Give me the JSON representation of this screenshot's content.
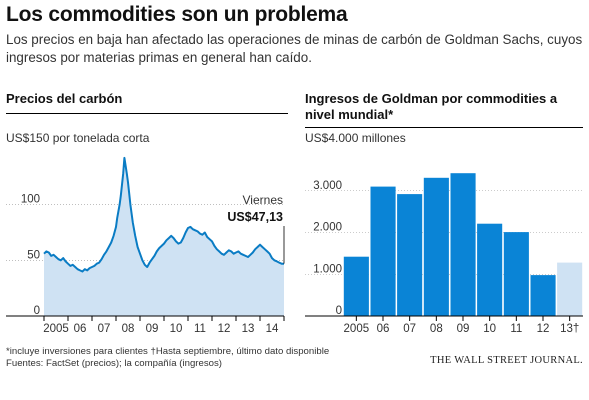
{
  "header": {
    "title": "Los commodities son un problema",
    "subtitle": "Los precios en baja han afectado las operaciones de minas de carbón de Goldman Sachs, cuyos ingresos por materias primas en general han caído."
  },
  "footer": {
    "note": "*incluye inversiones para clientes  †Hasta septiembre, último dato disponible",
    "sources": "Fuentes: FactSet (precios); la compañía (ingresos)",
    "brand": "THE WALL STREET JOURNAL."
  },
  "colors": {
    "fill": "#cfe2f3",
    "line": "#0a7cc4",
    "bar": "#0a84d6",
    "bar_light": "#cfe2f3"
  },
  "chart_data": [
    {
      "type": "area",
      "title": "Precios del carbón",
      "unit_label": "US$150 por tonelada corta",
      "ylim": [
        0,
        150
      ],
      "yticks": [
        0,
        50,
        100
      ],
      "xlim": [
        2005.0,
        2015.0
      ],
      "xtick_labels": [
        "2005",
        "06",
        "07",
        "08",
        "09",
        "10",
        "11",
        "12",
        "13",
        "14"
      ],
      "annotation": {
        "label": "Viernes",
        "value": "US$47,13"
      },
      "series": [
        {
          "x": [
            2005.0,
            2005.1,
            2005.2,
            2005.3,
            2005.4,
            2005.5,
            2005.6,
            2005.7,
            2005.8,
            2005.9,
            2006.0,
            2006.1,
            2006.2,
            2006.3,
            2006.4,
            2006.5,
            2006.6,
            2006.7,
            2006.8,
            2006.9,
            2007.0,
            2007.1,
            2007.2,
            2007.3,
            2007.4,
            2007.5,
            2007.6,
            2007.7,
            2007.8,
            2007.9,
            2008.0,
            2008.05,
            2008.1,
            2008.15,
            2008.2,
            2008.25,
            2008.3,
            2008.35,
            2008.4,
            2008.45,
            2008.5,
            2008.55,
            2008.6,
            2008.65,
            2008.7,
            2008.75,
            2008.8,
            2008.9,
            2009.0,
            2009.1,
            2009.2,
            2009.3,
            2009.4,
            2009.5,
            2009.6,
            2009.7,
            2009.8,
            2009.9,
            2010.0,
            2010.1,
            2010.2,
            2010.3,
            2010.4,
            2010.5,
            2010.6,
            2010.7,
            2010.8,
            2010.9,
            2011.0,
            2011.1,
            2011.2,
            2011.3,
            2011.4,
            2011.5,
            2011.6,
            2011.7,
            2011.8,
            2011.9,
            2012.0,
            2012.1,
            2012.2,
            2012.3,
            2012.4,
            2012.5,
            2012.6,
            2012.7,
            2012.8,
            2012.9,
            2013.0,
            2013.1,
            2013.2,
            2013.3,
            2013.4,
            2013.5,
            2013.6,
            2013.7,
            2013.8,
            2013.9,
            2014.0,
            2014.1,
            2014.2,
            2014.3,
            2014.4,
            2014.5,
            2014.6,
            2014.7,
            2014.8,
            2014.9,
            2015.0
          ],
          "y": [
            56,
            58,
            57,
            54,
            55,
            53,
            51,
            50,
            52,
            49,
            47,
            45,
            46,
            44,
            42,
            41,
            40,
            42,
            41,
            43,
            44,
            45,
            47,
            48,
            51,
            55,
            58,
            62,
            66,
            72,
            80,
            88,
            94,
            100,
            108,
            118,
            128,
            142,
            135,
            128,
            120,
            110,
            100,
            92,
            84,
            78,
            72,
            62,
            56,
            50,
            46,
            44,
            48,
            51,
            54,
            58,
            61,
            63,
            65,
            68,
            70,
            72,
            70,
            67,
            65,
            66,
            70,
            75,
            79,
            80,
            78,
            77,
            76,
            74,
            73,
            75,
            71,
            69,
            67,
            63,
            60,
            58,
            56,
            55,
            57,
            59,
            58,
            56,
            57,
            58,
            56,
            55,
            54,
            53,
            55,
            57,
            60,
            62,
            64,
            62,
            60,
            58,
            56,
            52,
            50,
            49,
            48,
            47,
            47
          ]
        }
      ]
    },
    {
      "type": "bar",
      "title": "Ingresos de Goldman por commodities a nivel mundial*",
      "unit_label": "US$4.000 millones",
      "ylim": [
        0,
        4000
      ],
      "yticks": [
        0,
        1000,
        2000,
        3000
      ],
      "ytick_labels": [
        "0",
        "1.000",
        "2.000",
        "3.000"
      ],
      "categories": [
        "2005",
        "06",
        "07",
        "08",
        "09",
        "10",
        "11",
        "12",
        "13†"
      ],
      "values": [
        1420,
        3100,
        2920,
        3310,
        3420,
        2210,
        2010,
        980,
        1280
      ],
      "highlight_last": true
    }
  ]
}
